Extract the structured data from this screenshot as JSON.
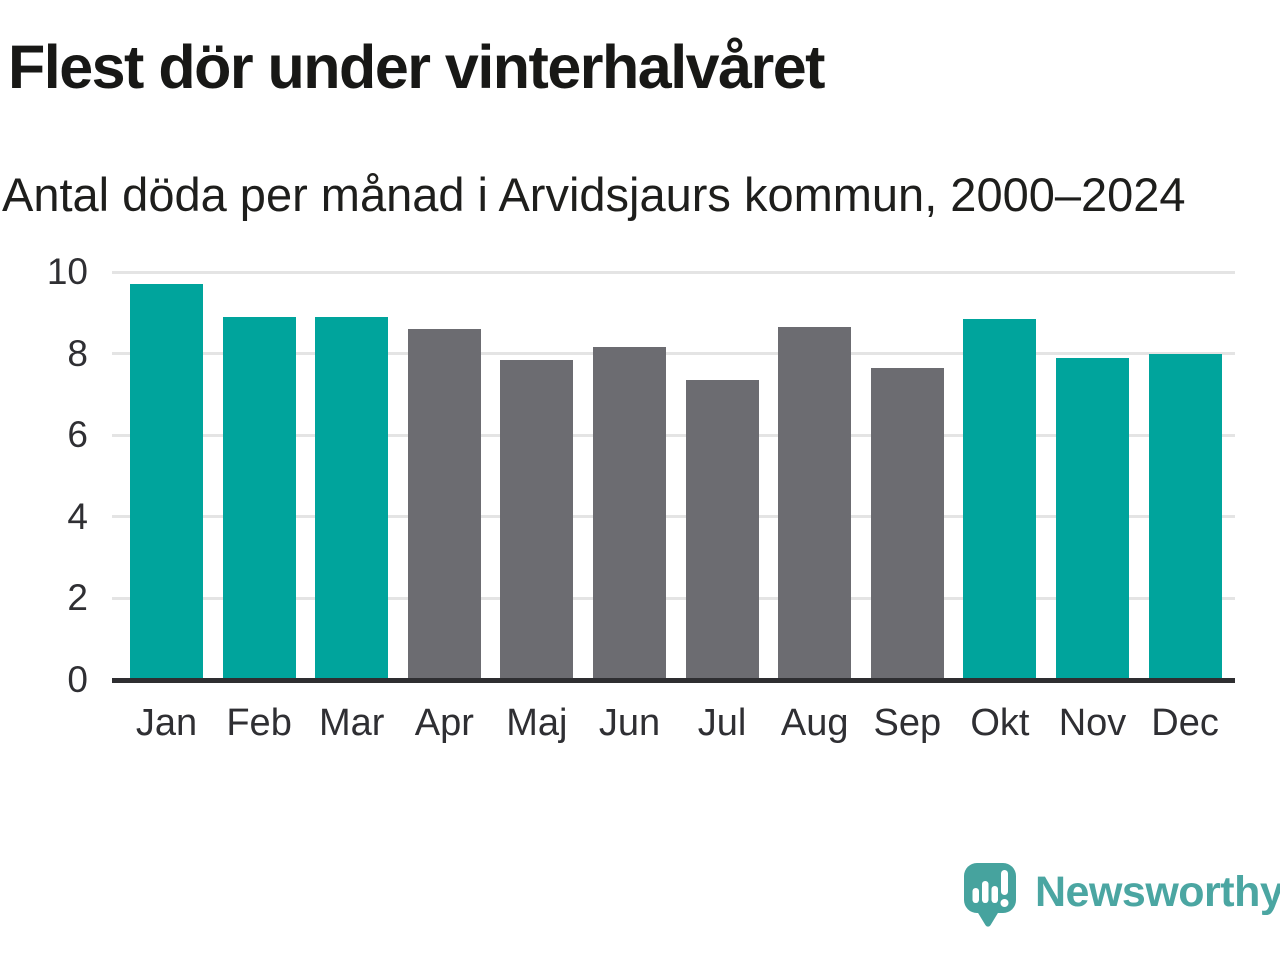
{
  "header": {
    "title": "Flest dör under vinterhalvåret",
    "subtitle": "Antal döda per månad i Arvidsjaurs kommun, 2000–2024"
  },
  "chart_data": {
    "type": "bar",
    "title": "Flest dör under vinterhalvåret",
    "subtitle": "Antal döda per månad i Arvidsjaurs kommun, 2000–2024",
    "categories": [
      "Jan",
      "Feb",
      "Mar",
      "Apr",
      "Maj",
      "Jun",
      "Jul",
      "Aug",
      "Sep",
      "Okt",
      "Nov",
      "Dec"
    ],
    "values": [
      9.7,
      8.9,
      8.9,
      8.6,
      7.85,
      8.15,
      7.35,
      8.65,
      7.65,
      8.85,
      7.9,
      8.0
    ],
    "xlabel": "",
    "ylabel": "",
    "ylim": [
      0,
      10
    ],
    "yticks": [
      0,
      2,
      4,
      6,
      8,
      10
    ],
    "grid": true,
    "legend": "none",
    "highlight_categories": [
      "Jan",
      "Feb",
      "Mar",
      "Okt",
      "Nov",
      "Dec"
    ],
    "colors": {
      "highlight": "#00a49c",
      "default": "#6c6c71",
      "gridline": "#e4e4e4",
      "axis": "#2e2e31"
    }
  },
  "footer": {
    "brand": "Newsworthy"
  },
  "icons": {
    "logo": "newsworthy-speech-bubble-bar-chart-icon"
  }
}
